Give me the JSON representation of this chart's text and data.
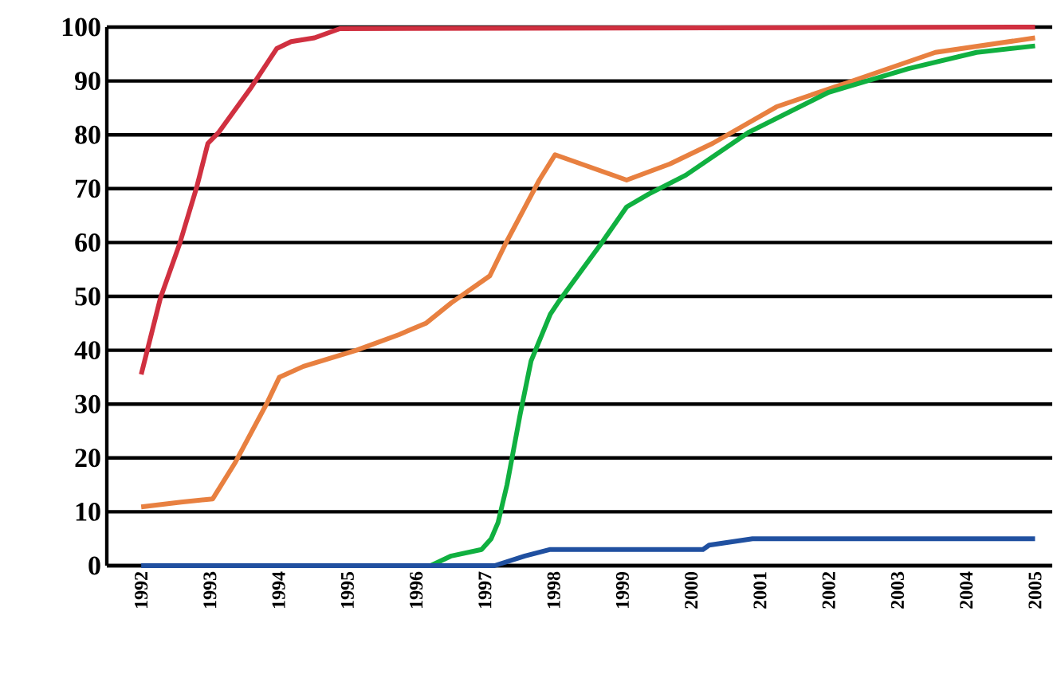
{
  "chart_data": {
    "type": "line",
    "xlim": [
      1991.5,
      2005.25
    ],
    "ylim": [
      0,
      100
    ],
    "xticks": [
      1992,
      1993,
      1994,
      1995,
      1996,
      1997,
      1998,
      1999,
      2000,
      2001,
      2002,
      2003,
      2004,
      2005
    ],
    "yticks": [
      0,
      10,
      20,
      30,
      40,
      50,
      60,
      70,
      80,
      90,
      100
    ],
    "grid": "y",
    "series": [
      {
        "color": "#d03040",
        "x": [
          1992,
          1992.28,
          1992.56,
          1992.81,
          1992.97,
          1993.13,
          1993.6,
          1993.97,
          1994.18,
          1994.52,
          1994.89,
          2005
        ],
        "values": [
          35.5,
          49.7,
          59.8,
          70.4,
          78.4,
          80.5,
          88.8,
          96,
          97.3,
          98,
          99.7,
          100
        ]
      },
      {
        "color": "#e88040",
        "x": [
          1992,
          1992.58,
          1993.04,
          1993.37,
          1993.83,
          1994.01,
          1994.36,
          1995.13,
          1995.75,
          1996.14,
          1996.51,
          1997.07,
          1997.3,
          1997.79,
          1998.02,
          1999.06,
          1999.69,
          2000.31,
          2001.24,
          2002.39,
          2003.55,
          2005
        ],
        "values": [
          10.9,
          11.8,
          12.4,
          19.2,
          30.2,
          35,
          37,
          40,
          42.9,
          45,
          48.8,
          53.8,
          59.8,
          71.6,
          76.3,
          71.6,
          74.6,
          78.4,
          85.2,
          90.2,
          95.3,
          98
        ]
      },
      {
        "color": "#10b040",
        "x": [
          1996.21,
          1996.51,
          1996.95,
          1997.09,
          1997.19,
          1997.32,
          1997.51,
          1997.67,
          1997.95,
          1998.06,
          1998.69,
          1999.06,
          1999.38,
          1999.92,
          2000.84,
          2002.0,
          2003.16,
          2004.15,
          2005
        ],
        "values": [
          0,
          1.8,
          3,
          5,
          8,
          15,
          28,
          38,
          46.7,
          48.8,
          59.8,
          66.6,
          69,
          72.5,
          80.5,
          87.9,
          92.3,
          95.3,
          96.5
        ]
      },
      {
        "color": "#2050a0",
        "x": [
          1992,
          1997.14,
          1997.58,
          1997.95,
          2000.17,
          2000.26,
          2000.89,
          2005
        ],
        "values": [
          0,
          0,
          1.8,
          3,
          3,
          3.8,
          5,
          5
        ]
      }
    ]
  }
}
